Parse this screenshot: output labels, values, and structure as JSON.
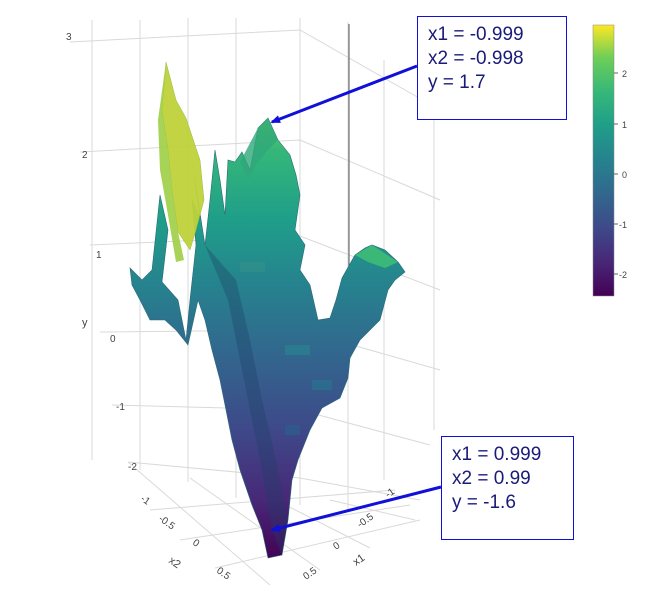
{
  "chart_data": {
    "type": "surface",
    "title": "",
    "axes": {
      "x1": {
        "label": "x1",
        "range": [
          -1,
          1
        ],
        "ticks": [
          "-1",
          "-0.5",
          "0",
          "0.5"
        ]
      },
      "x2": {
        "label": "x2",
        "range": [
          -1,
          1
        ],
        "ticks": [
          "-1",
          "-0.5",
          "0",
          "0.5"
        ]
      },
      "y": {
        "label": "y",
        "range": [
          -2.5,
          3
        ],
        "ticks": [
          "-2",
          "-1",
          "0",
          "1",
          "2",
          "3"
        ]
      }
    },
    "colorscale": "viridis",
    "colorbar": {
      "range": [
        -2.4,
        3.0
      ],
      "ticks": [
        "2",
        "1",
        "0",
        "-1",
        "-2"
      ]
    },
    "surface_peak_approx": 2.8,
    "annotations": [
      {
        "lines": [
          "x1 = -0.999",
          "x2 = -0.998",
          "y = 1.7"
        ],
        "x1": -0.999,
        "x2": -0.998,
        "y": 1.7,
        "arrow_color": "#1010d8"
      },
      {
        "lines": [
          "x1 = 0.999",
          "x2 = 0.99",
          "y = -1.6"
        ],
        "x1": 0.999,
        "x2": 0.99,
        "y": -1.6,
        "arrow_color": "#1010d8"
      }
    ],
    "grid": true,
    "colors": {
      "annotation": "#1010d8",
      "grid": "#d9d9d9",
      "tick_text": "#444444"
    }
  }
}
